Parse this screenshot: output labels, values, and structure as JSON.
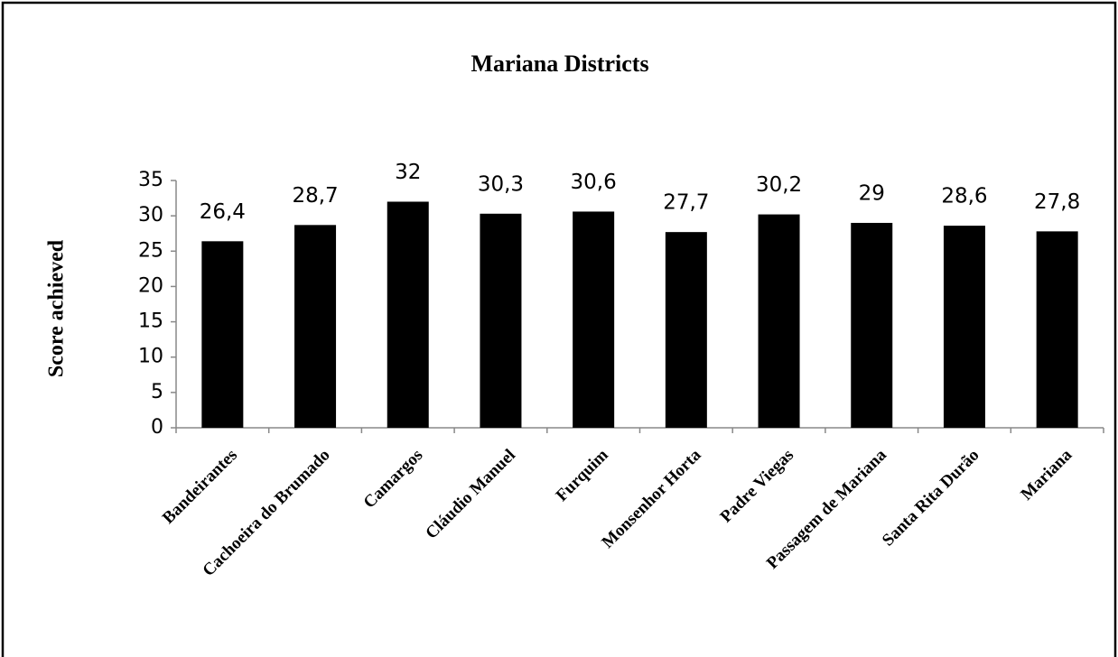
{
  "chart_data": {
    "type": "bar",
    "title": "Mariana Districts",
    "y_label": "Score achieved",
    "categories": [
      "Bandeirantes",
      "Cachoeira do Brumado",
      "Camargos",
      "Cláudio Manuel",
      "Furquim",
      "Monsenhor Horta",
      "Padre Viegas",
      "Passagem de Mariana",
      "Santa Rita Durão",
      "Mariana"
    ],
    "values": [
      26.4,
      28.7,
      32,
      30.3,
      30.6,
      27.7,
      30.2,
      29,
      28.6,
      27.8
    ],
    "value_labels": [
      "26,4",
      "28,7",
      "32",
      "30,3",
      "30,6",
      "27,7",
      "30,2",
      "29",
      "28,6",
      "27,8"
    ],
    "color": "#000000",
    "ylim": [
      0,
      35
    ],
    "yticks": [
      0,
      5,
      10,
      15,
      20,
      25,
      30,
      35
    ],
    "grid": false
  }
}
